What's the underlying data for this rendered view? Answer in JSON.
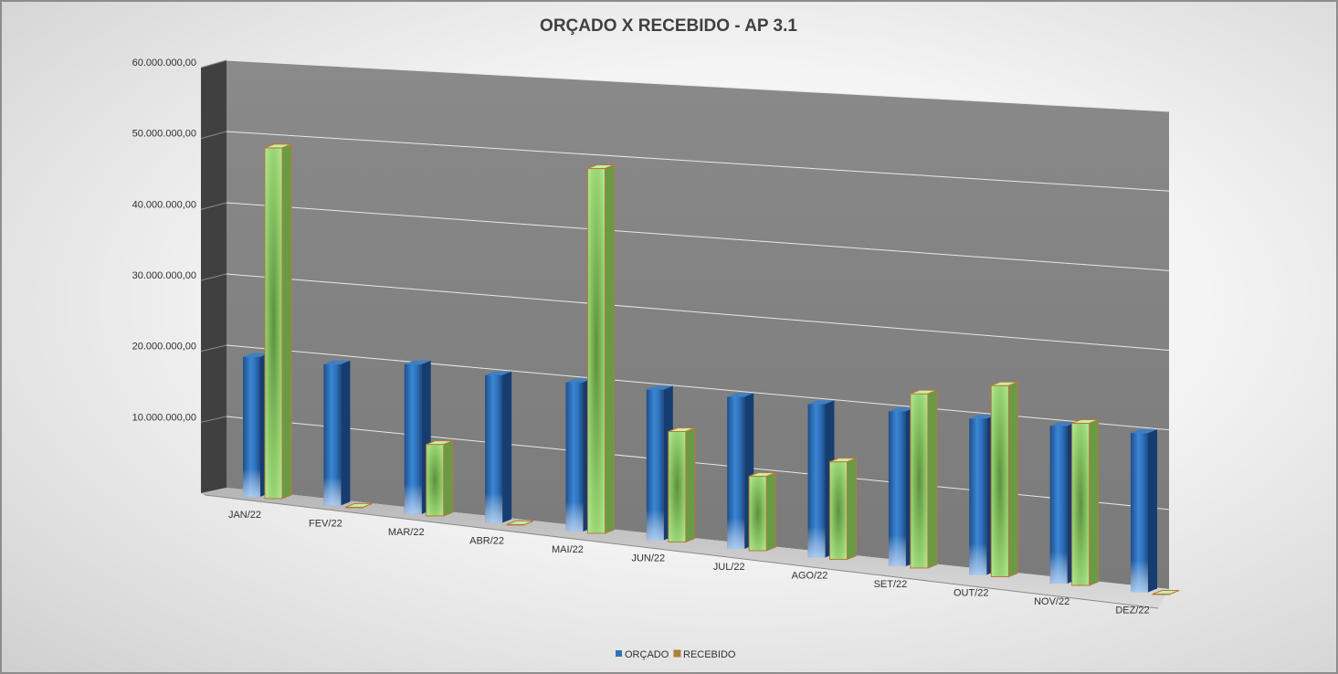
{
  "chart_data": {
    "type": "bar",
    "title": "ORÇADO X RECEBIDO - AP 3.1",
    "categories": [
      "JAN/22",
      "FEV/22",
      "MAR/22",
      "ABR/22",
      "MAI/22",
      "JUN/22",
      "JUL/22",
      "AGO/22",
      "SET/22",
      "OUT/22",
      "NOV/22",
      "DEZ/22"
    ],
    "series": [
      {
        "name": "ORÇADO",
        "color": "#2e75b6",
        "values": [
          20000000,
          20000000,
          21000000,
          20500000,
          20500000,
          20500000,
          20500000,
          20500000,
          20500000,
          20500000,
          20500000,
          20500000
        ]
      },
      {
        "name": "RECEBIDO",
        "color": "#9fde7f",
        "values": [
          50000000,
          0,
          10000000,
          0,
          50000000,
          15000000,
          10000000,
          13000000,
          23000000,
          25000000,
          21000000,
          0
        ]
      }
    ],
    "ylim": [
      0,
      60000000
    ],
    "yticks": [
      {
        "value": 0,
        "label": "-"
      },
      {
        "value": 10000000,
        "label": "10.000.000,00"
      },
      {
        "value": 20000000,
        "label": "20.000.000,00"
      },
      {
        "value": 30000000,
        "label": "30.000.000,00"
      },
      {
        "value": 40000000,
        "label": "40.000.000,00"
      },
      {
        "value": 50000000,
        "label": "50.000.000,00"
      },
      {
        "value": 60000000,
        "label": "60.000.000,00"
      }
    ],
    "grid": true,
    "legend_position": "bottom",
    "colors": {
      "back_wall": "#7f7f7f",
      "side_wall": "#404040",
      "floor": "#c8c8c8"
    }
  }
}
